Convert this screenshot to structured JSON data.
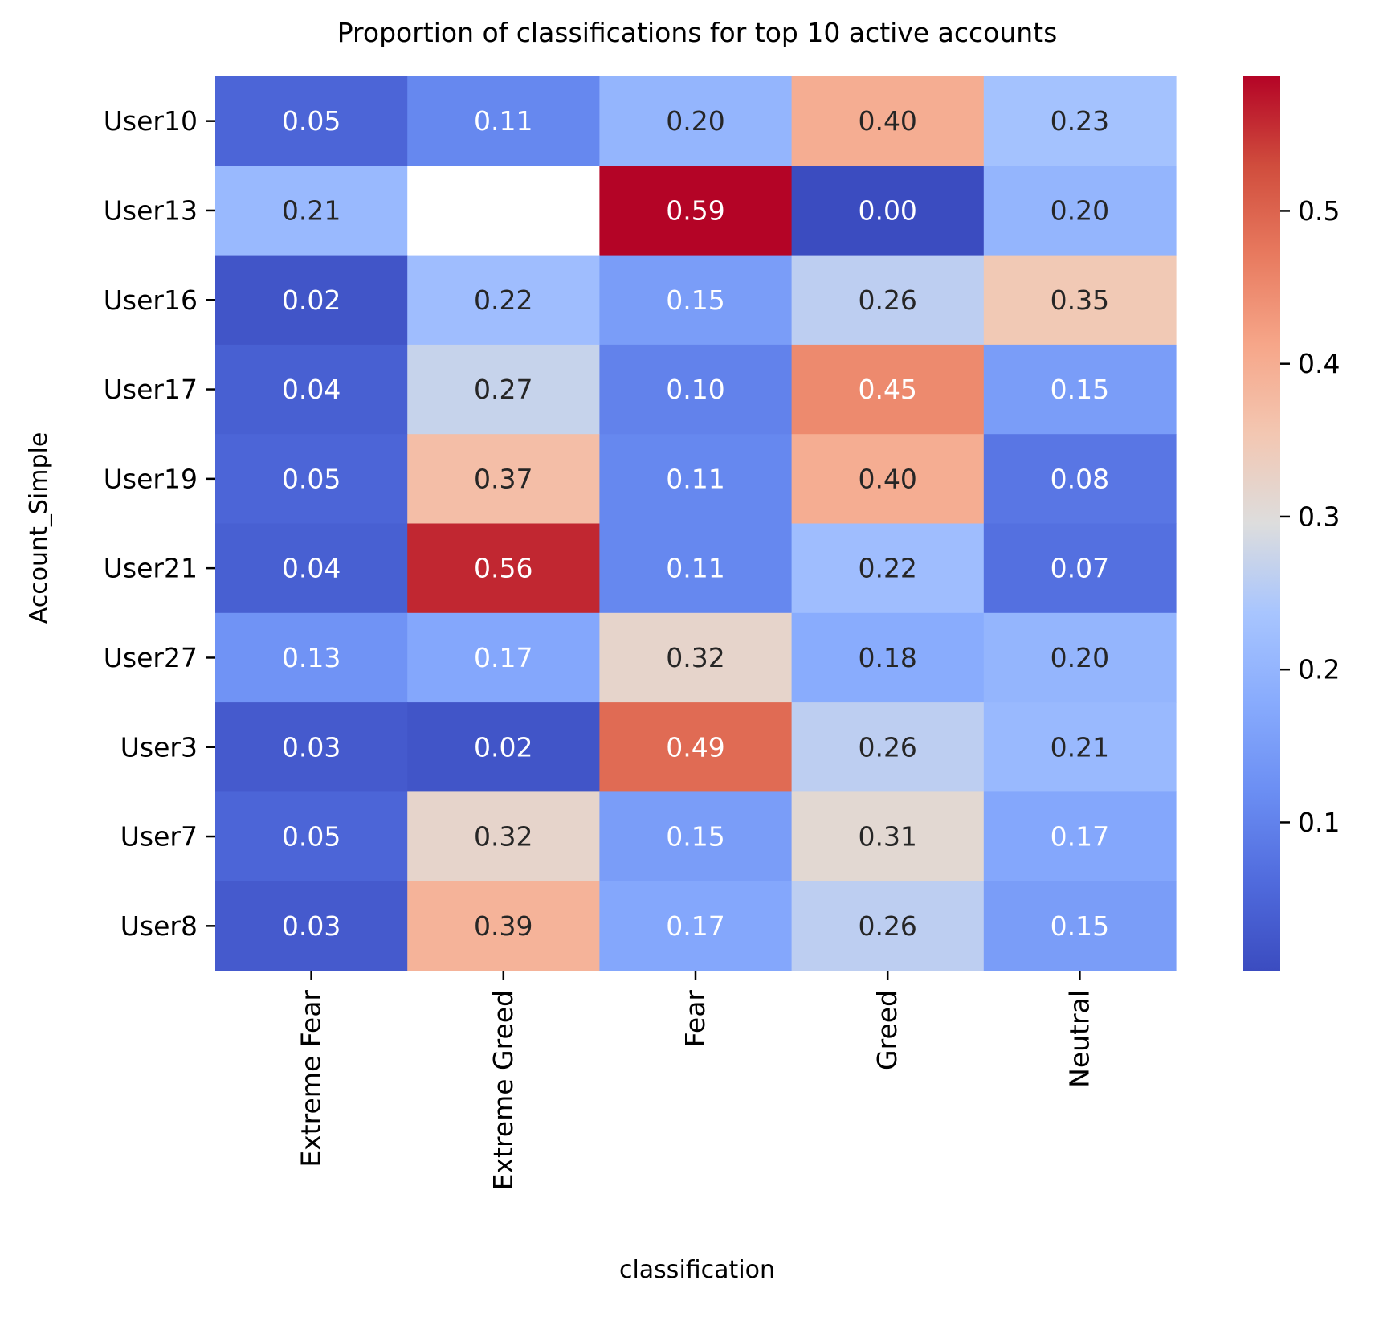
{
  "chart_data": {
    "type": "heatmap",
    "title": "Proportion of classifications for top 10 active accounts",
    "xlabel": "classification",
    "ylabel": "Account_Simple",
    "columns": [
      "Extreme Fear",
      "Extreme Greed",
      "Fear",
      "Greed",
      "Neutral"
    ],
    "rows": [
      "User10",
      "User13",
      "User16",
      "User17",
      "User19",
      "User21",
      "User27",
      "User3",
      "User7",
      "User8"
    ],
    "values": [
      [
        0.05,
        0.11,
        0.2,
        0.4,
        0.23
      ],
      [
        0.21,
        null,
        0.59,
        0.0,
        0.2
      ],
      [
        0.02,
        0.22,
        0.15,
        0.26,
        0.35
      ],
      [
        0.04,
        0.27,
        0.1,
        0.45,
        0.15
      ],
      [
        0.05,
        0.37,
        0.11,
        0.4,
        0.08
      ],
      [
        0.04,
        0.56,
        0.11,
        0.22,
        0.07
      ],
      [
        0.13,
        0.17,
        0.32,
        0.18,
        0.2
      ],
      [
        0.03,
        0.02,
        0.49,
        0.26,
        0.21
      ],
      [
        0.05,
        0.32,
        0.15,
        0.31,
        0.17
      ],
      [
        0.03,
        0.39,
        0.17,
        0.26,
        0.15
      ]
    ],
    "annotation_format": "0.00",
    "colormap": "coolwarm",
    "colorbar": {
      "range": [
        0.003,
        0.588
      ],
      "ticks": [
        0.1,
        0.2,
        0.3,
        0.4,
        0.5
      ],
      "tick_labels": [
        "0.1",
        "0.2",
        "0.3",
        "0.4",
        "0.5"
      ]
    },
    "missing_cell_color": "#ffffff",
    "annotation_colors": {
      "dark": "#262626",
      "light": "#ffffff"
    }
  }
}
